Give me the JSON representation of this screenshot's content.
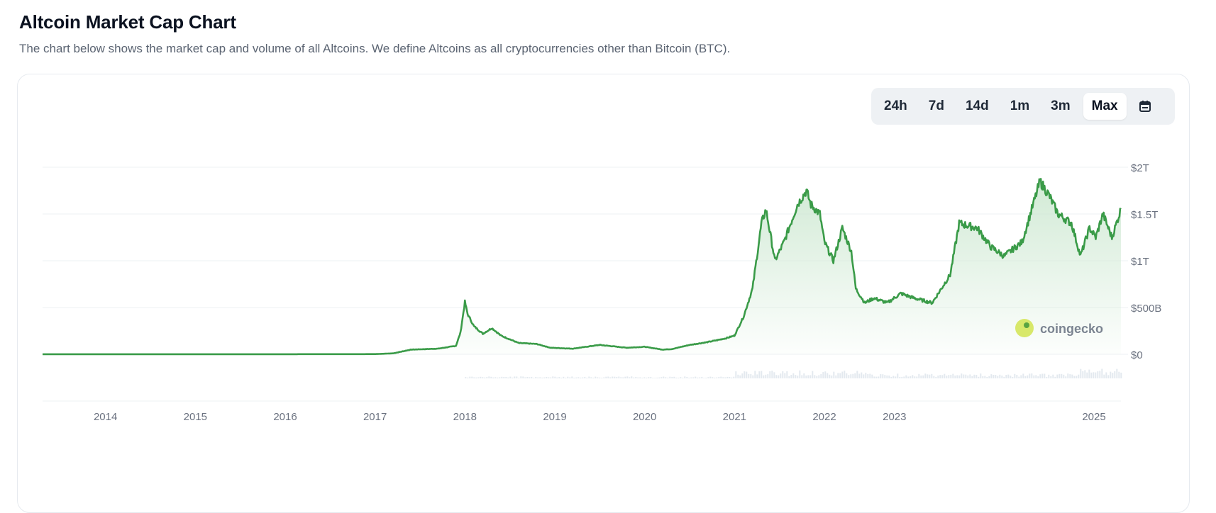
{
  "header": {
    "title": "Altcoin Market Cap Chart",
    "subtitle": "The chart below shows the market cap and volume of all Altcoins. We define Altcoins as all cryptocurrencies other than Bitcoin (BTC)."
  },
  "range_selector": {
    "options": [
      "24h",
      "7d",
      "14d",
      "1m",
      "3m",
      "Max"
    ],
    "selected": "Max",
    "calendar_icon": "calendar-icon"
  },
  "watermark": {
    "text": "coingecko",
    "icon": "coingecko-logo"
  },
  "colors": {
    "line": "#3a9b48",
    "fill_top": "#cfe9d3",
    "volume": "#e3e9ef",
    "grid": "#eef0f3",
    "axis_text": "#6b7280"
  },
  "chart_data": {
    "type": "area",
    "title": "",
    "xlabel": "",
    "ylabel": "",
    "y_ticks": [
      "$0",
      "$500B",
      "$1T",
      "$1.5T",
      "$2T"
    ],
    "x_ticks": [
      "2014",
      "2015",
      "2016",
      "2017",
      "2018",
      "2019",
      "2020",
      "2021",
      "2022",
      "2023",
      "2025"
    ],
    "grid": true,
    "series": [
      {
        "values_in": "billions USD",
        "x": [
          2013.3,
          2016.0,
          2017.0,
          2017.2,
          2017.4,
          2017.7,
          2017.9,
          2017.95,
          2018.0,
          2018.03,
          2018.1,
          2018.2,
          2018.3,
          2018.4,
          2018.6,
          2018.8,
          2018.95,
          2019.2,
          2019.5,
          2019.8,
          2020.0,
          2020.2,
          2020.3,
          2020.5,
          2020.7,
          2020.9,
          2021.0,
          2021.1,
          2021.2,
          2021.3,
          2021.35,
          2021.45,
          2021.55,
          2021.7,
          2021.8,
          2021.85,
          2021.95,
          2022.0,
          2022.1,
          2022.2,
          2022.3,
          2022.35,
          2022.45,
          2022.55,
          2022.7,
          2022.85,
          2023.0,
          2023.2,
          2023.4,
          2023.5,
          2023.7,
          2023.85,
          2024.0,
          2024.2,
          2024.4,
          2024.5,
          2024.6,
          2024.75,
          2024.85,
          2024.95,
          2025.02,
          2025.1,
          2025.2,
          2025.3
        ],
        "y": [
          1,
          1,
          2,
          10,
          50,
          60,
          90,
          230,
          560,
          430,
          300,
          220,
          280,
          200,
          120,
          110,
          70,
          60,
          100,
          70,
          80,
          50,
          55,
          100,
          130,
          170,
          200,
          400,
          700,
          1400,
          1550,
          1000,
          1200,
          1600,
          1750,
          1600,
          1500,
          1200,
          1000,
          1350,
          1100,
          700,
          550,
          600,
          550,
          650,
          600,
          550,
          850,
          1400,
          1350,
          1150,
          1050,
          1200,
          1850,
          1700,
          1500,
          1400,
          1050,
          1350,
          1250,
          1500,
          1250,
          1550
        ]
      }
    ],
    "ylim": [
      0,
      2000
    ]
  }
}
